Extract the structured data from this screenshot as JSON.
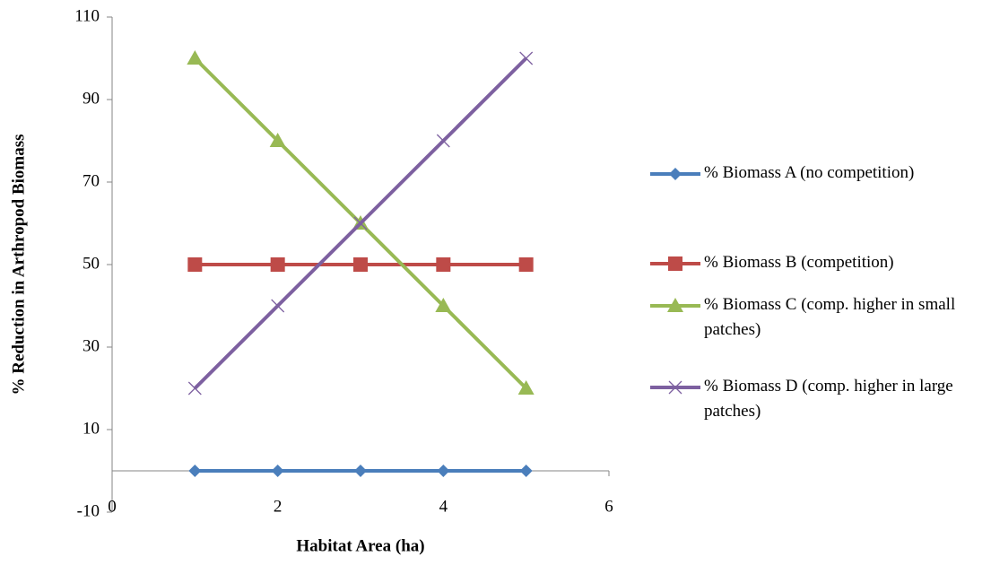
{
  "chart_data": {
    "type": "line",
    "x_label": "Habitat Area (ha)",
    "y_label": "% Reduction in Arthropod Biomass",
    "x": [
      1,
      2,
      3,
      4,
      5
    ],
    "xlim": [
      0,
      6
    ],
    "xticks": [
      0,
      2,
      4,
      6
    ],
    "ylim": [
      -10,
      110
    ],
    "yticks": [
      -10,
      10,
      30,
      50,
      70,
      90,
      110
    ],
    "legend": "right",
    "series": [
      {
        "name": "% Biomass A (no competition)",
        "color": "#4a7ebb",
        "marker": "diamond",
        "values": [
          0,
          0,
          0,
          0,
          0
        ]
      },
      {
        "name": "% Biomass B (competition)",
        "color": "#be4b48",
        "marker": "square",
        "values": [
          50,
          50,
          50,
          50,
          50
        ]
      },
      {
        "name": "% Biomass C (comp. higher in small patches)",
        "color": "#98b954",
        "marker": "triangle",
        "values": [
          100,
          80,
          60,
          40,
          20
        ]
      },
      {
        "name": "% Biomass D (comp. higher in large patches)",
        "color": "#7d60a0",
        "marker": "x",
        "values": [
          20,
          40,
          60,
          80,
          100
        ]
      }
    ]
  }
}
